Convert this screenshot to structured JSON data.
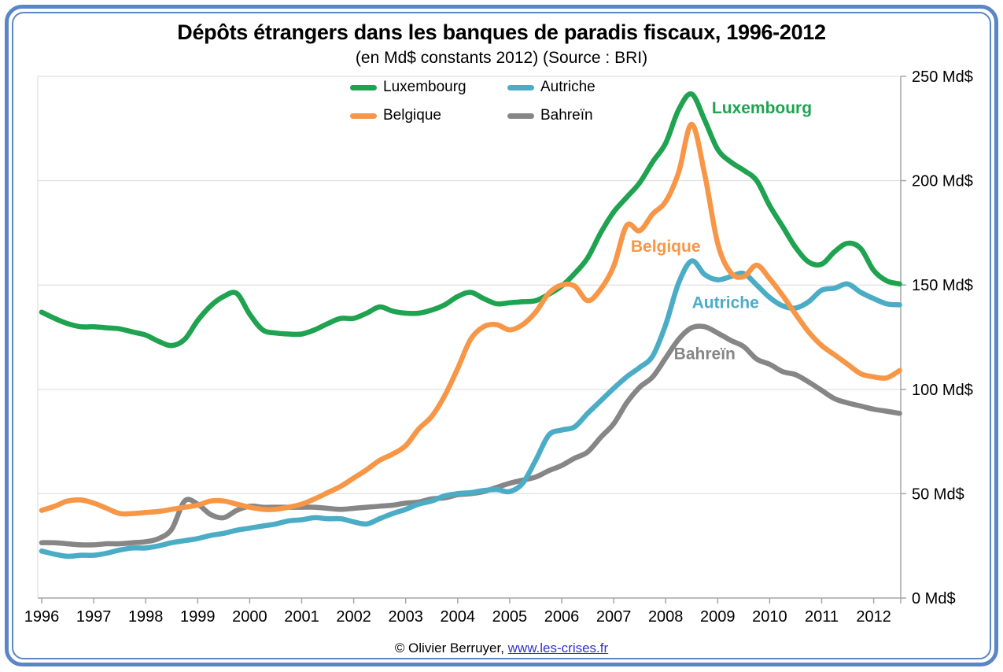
{
  "window": {
    "frame_color": "#5b86c5",
    "background": "#ffffff"
  },
  "title": "Dépôts étrangers dans les banques de paradis fiscaux, 1996-2012",
  "subtitle": "(en Md$ constants 2012) (Source : BRI)",
  "footer": {
    "copyright": "© Olivier Berruyer, ",
    "link": "www.les-crises.fr"
  },
  "legend": [
    {
      "label": "Luxembourg",
      "color": "#1fa350"
    },
    {
      "label": "Autriche",
      "color": "#4bacc6"
    },
    {
      "label": "Belgique",
      "color": "#f79646"
    },
    {
      "label": "Bahreïn",
      "color": "#868686"
    }
  ],
  "chart_data": {
    "type": "line",
    "title": "Dépôts étrangers dans les banques de paradis fiscaux, 1996-2012",
    "subtitle": "(en Md$ constants 2012) (Source : BRI)",
    "xlabel": "",
    "ylabel": "Md$ constants 2012",
    "xlim": [
      1996,
      2012.5
    ],
    "ylim": [
      0,
      250
    ],
    "grid": "horizontal",
    "legend_position": "top-center",
    "xticks": [
      1996,
      1997,
      1998,
      1999,
      2000,
      2001,
      2002,
      2003,
      2004,
      2005,
      2006,
      2007,
      2008,
      2009,
      2010,
      2011,
      2012
    ],
    "yticks": [
      0,
      50,
      100,
      150,
      200,
      250
    ],
    "ytick_label_suffix": " Md$",
    "x_unit": "year, quarterly samples",
    "x": [
      1996,
      1996.25,
      1996.5,
      1996.75,
      1997,
      1997.25,
      1997.5,
      1997.75,
      1998,
      1998.25,
      1998.5,
      1998.75,
      1999,
      1999.25,
      1999.5,
      1999.75,
      2000,
      2000.25,
      2000.5,
      2000.75,
      2001,
      2001.25,
      2001.5,
      2001.75,
      2002,
      2002.25,
      2002.5,
      2002.75,
      2003,
      2003.25,
      2003.5,
      2003.75,
      2004,
      2004.25,
      2004.5,
      2004.75,
      2005,
      2005.25,
      2005.5,
      2005.75,
      2006,
      2006.25,
      2006.5,
      2006.75,
      2007,
      2007.25,
      2007.5,
      2007.75,
      2008,
      2008.25,
      2008.5,
      2008.75,
      2009,
      2009.25,
      2009.5,
      2009.75,
      2010,
      2010.25,
      2010.5,
      2010.75,
      2011,
      2011.25,
      2011.5,
      2011.75,
      2012,
      2012.25,
      2012.5
    ],
    "series": [
      {
        "name": "Luxembourg",
        "color": "#1fa350",
        "values": [
          137,
          134,
          131.5,
          130,
          130,
          129.5,
          129,
          127.5,
          126,
          123,
          121,
          124,
          133,
          140,
          144.5,
          146,
          136,
          128.5,
          127,
          126.5,
          126.5,
          128.5,
          131.5,
          134,
          134,
          136.5,
          139.5,
          137.5,
          136.5,
          136.5,
          138,
          140.5,
          144.5,
          146.5,
          143.5,
          141,
          141.5,
          142,
          142.5,
          145.5,
          149.5,
          155.5,
          163,
          175,
          185,
          192,
          199,
          209,
          218,
          234,
          241.5,
          229,
          215,
          209,
          205,
          200,
          188,
          178,
          168,
          161,
          160,
          166,
          170,
          167.5,
          157,
          152,
          150.5
        ]
      },
      {
        "name": "Belgique",
        "color": "#f79646",
        "values": [
          42,
          44,
          46.5,
          47,
          45.5,
          43,
          40.5,
          40.5,
          41,
          41.5,
          42.5,
          43.5,
          44.5,
          46.5,
          46.5,
          45,
          43.5,
          42.5,
          42.5,
          43.5,
          45,
          47.5,
          50.5,
          53.5,
          57.5,
          61.5,
          66,
          69,
          73,
          81,
          87,
          97,
          110,
          124,
          130,
          131,
          128.5,
          131,
          137,
          146,
          150,
          149.5,
          142.5,
          148,
          159,
          178.5,
          176,
          184,
          190,
          204,
          227,
          203,
          170,
          156,
          154,
          159.5,
          153,
          145,
          136,
          127.5,
          121,
          116.5,
          112,
          107.5,
          106,
          105.5,
          109
        ]
      },
      {
        "name": "Autriche",
        "color": "#4bacc6",
        "values": [
          22.5,
          21,
          20,
          20.5,
          20.5,
          21.5,
          23,
          24,
          24,
          25,
          26.5,
          27.5,
          28.5,
          30,
          31,
          32.5,
          33.5,
          34.5,
          35.5,
          37,
          37.5,
          38.5,
          38,
          38,
          36.5,
          35.5,
          38,
          40.5,
          42.5,
          45,
          46.5,
          49,
          50,
          50.5,
          51.5,
          52,
          51,
          55,
          66,
          78,
          80.5,
          82,
          88.5,
          94.5,
          100.5,
          106,
          110.5,
          116,
          131,
          151,
          161.5,
          155,
          152.5,
          154,
          155.5,
          150,
          144,
          140,
          139,
          142,
          147.5,
          148.5,
          150.5,
          146.5,
          143.5,
          141,
          140.5
        ]
      },
      {
        "name": "Bahreïn",
        "color": "#868686",
        "values": [
          26.5,
          26.5,
          26,
          25.5,
          25.5,
          26,
          26,
          26.5,
          27,
          28.5,
          33,
          46.5,
          45,
          40,
          38.5,
          42,
          44,
          43.5,
          43.5,
          43.5,
          43.5,
          43.5,
          43,
          42.5,
          43,
          43.5,
          44,
          44.5,
          45.5,
          46,
          47.5,
          48,
          49.5,
          50,
          51,
          53,
          55,
          56.5,
          58,
          61,
          63.5,
          67,
          70,
          77,
          83.5,
          93.5,
          101,
          106,
          115,
          124,
          129.5,
          130,
          127,
          123.5,
          120.5,
          114.5,
          112,
          108.5,
          107,
          103.5,
          99.5,
          95.5,
          93.5,
          92,
          90.5,
          89.5,
          88.5
        ]
      }
    ],
    "annotations": [
      {
        "text": "Luxembourg",
        "color": "#1fa350",
        "x": 2009.85,
        "y": 235
      },
      {
        "text": "Belgique",
        "color": "#f79646",
        "x": 2008.0,
        "y": 168.5
      },
      {
        "text": "Autriche",
        "color": "#4bacc6",
        "x": 2009.15,
        "y": 141.5
      },
      {
        "text": "Bahreïn",
        "color": "#868686",
        "x": 2008.75,
        "y": 117
      }
    ]
  }
}
